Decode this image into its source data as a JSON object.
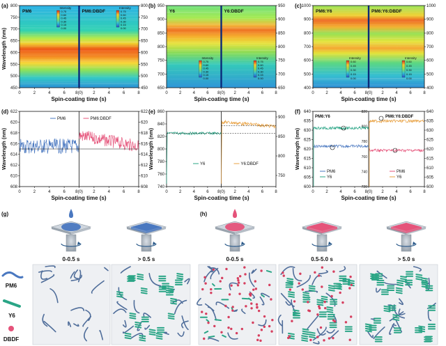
{
  "panels": {
    "a": {
      "tag": "(a)",
      "left": "PM6",
      "right": "PM6:DBDF",
      "yticks": [
        "800",
        "750",
        "700",
        "650",
        "600",
        "550",
        "500",
        "450"
      ],
      "ylabel": "Wavelength (nm)",
      "xlabel": "Spin-coating time (s)",
      "cbar_title": "Intensity",
      "cbar_ticks": [
        "0.75",
        "0.60",
        "0.45",
        "0.30",
        "0.15",
        "0.00"
      ]
    },
    "b": {
      "tag": "(b)",
      "left": "Y6",
      "right": "Y6:DBDF",
      "yticks": [
        "950",
        "900",
        "850",
        "800",
        "750",
        "700",
        "650"
      ],
      "cbar_title": "Intensity",
      "cbar_ticks": [
        "0.75",
        "0.60",
        "0.45",
        "0.30",
        "0.15",
        "0.00"
      ]
    },
    "c": {
      "tag": "(c)",
      "left": "PM6:Y6",
      "right": "PM6:Y6:DBDF",
      "yticks": [
        "1000",
        "900",
        "800",
        "700",
        "600",
        "500",
        "400"
      ],
      "cbar_title": "Intensity",
      "cbar_ticks": [
        "0.60",
        "0.45",
        "0.30",
        "0.15",
        "0.00"
      ]
    },
    "d": {
      "tag": "(d)",
      "left": "PM6",
      "right": "PM6:DBDF",
      "yticks": [
        "622",
        "620",
        "618",
        "616",
        "614",
        "612",
        "610",
        "608"
      ],
      "ylabel": "Wavelength (nm)",
      "xlabel": "Spin-coating time (s)"
    },
    "e": {
      "tag": "(e)",
      "left": "Y6",
      "right": "Y6:DBDF",
      "yticks": [
        "860",
        "840",
        "820",
        "800",
        "780",
        "760",
        "740"
      ],
      "ylabel": "Wavelength (nm)"
    },
    "f": {
      "tag": "(f)",
      "left": "PM6:Y6",
      "right": "PM6:Y6:DBDF",
      "yticks_left": [
        "640",
        "635",
        "630",
        "625",
        "620",
        "615",
        "610",
        "605",
        "600"
      ],
      "yticks_mid": [
        "820",
        "800",
        "780",
        "760",
        "740",
        "720"
      ],
      "legend": [
        "PM6",
        "Y6"
      ]
    },
    "g": {
      "tag": "(g)",
      "stage1": "0-0.5 s",
      "stage2": "> 0.5 s"
    },
    "h": {
      "tag": "(h)",
      "stage1": "0-0.5 s",
      "stage2": "0.5-5.0 s",
      "stage3": "> 5.0 s"
    }
  },
  "xticks": [
    "0",
    "2",
    "4",
    "6",
    "8(0)",
    "2",
    "4",
    "6",
    "8"
  ],
  "legend_items": [
    "PM6",
    "Y6",
    "DBDF"
  ],
  "colors": {
    "pm6": "#4a78c0",
    "y6": "#2aa586",
    "dbdf": "#e5537a",
    "dbdf_line": "#e8a040"
  }
}
